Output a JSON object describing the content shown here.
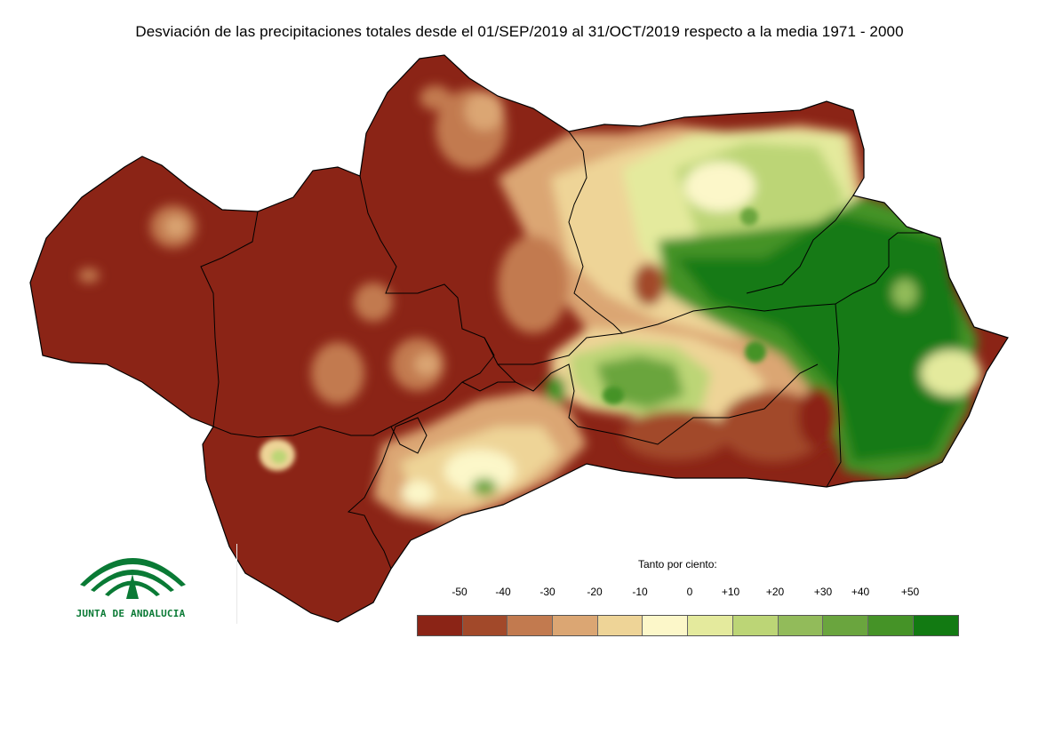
{
  "title": "Desviación de las precipitaciones totales desde el 01/SEP/2019 al 31/OCT/2019 respecto a la media 1971 - 2000",
  "logo": {
    "text": "JUNTA DE ANDALUCIA"
  },
  "legend": {
    "title": "Tanto por ciento:",
    "ticks": [
      "-50",
      "-40",
      "-30",
      "-20",
      "-10",
      "0",
      "+10",
      "+20",
      "+30",
      "+40",
      "+50"
    ],
    "colors": [
      "#8b2416",
      "#a2492a",
      "#c27a4f",
      "#dba673",
      "#eed497",
      "#fcf7c9",
      "#e4ea9d",
      "#bcd576",
      "#92bb5a",
      "#6aa53e",
      "#459327",
      "#127a12"
    ]
  },
  "map": {
    "region": "Andalucía",
    "dry_color": "#8b2416",
    "wet_color": "#127a12"
  }
}
